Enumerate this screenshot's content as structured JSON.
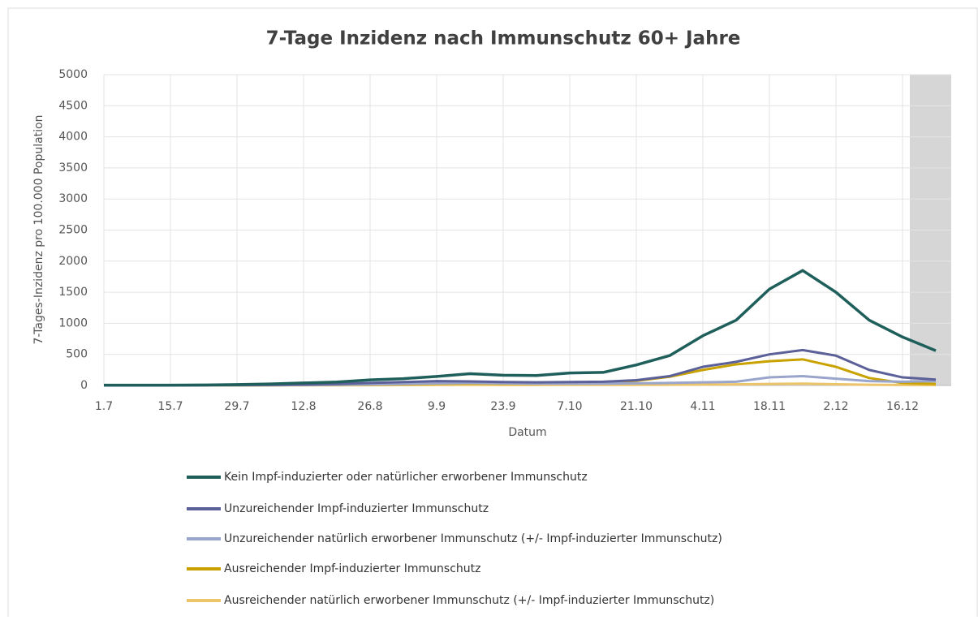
{
  "chart_data": {
    "type": "line",
    "title": "7-Tage Inzidenz nach Immunschutz 60+ Jahre",
    "x_label": "Datum",
    "y_label": "7-Tages-Inzidenz pro 100.000 Population",
    "categories": [
      "1.7",
      null,
      "15.7",
      null,
      "29.7",
      null,
      "12.8",
      null,
      "26.8",
      null,
      "9.9",
      null,
      "23.9",
      null,
      "7.10",
      null,
      "21.10",
      null,
      "4.11",
      null,
      "18.11",
      null,
      "2.12",
      null,
      "16.12",
      null
    ],
    "series": [
      {
        "name": "Kein Impf-induzierter oder natürlicher erworbener Immunschutz",
        "color": "#1f5f5b",
        "values": [
          5,
          5,
          5,
          8,
          15,
          25,
          40,
          55,
          90,
          110,
          145,
          190,
          165,
          160,
          200,
          210,
          330,
          480,
          800,
          1050,
          1550,
          1850,
          1500,
          1050,
          780,
          560
        ]
      },
      {
        "name": "Unzureichender Impf-induzierter Immunschutz",
        "color": "#5c6098",
        "values": [
          2,
          2,
          3,
          4,
          6,
          10,
          15,
          25,
          40,
          55,
          70,
          65,
          55,
          50,
          55,
          60,
          85,
          150,
          300,
          380,
          500,
          570,
          480,
          250,
          130,
          95
        ]
      },
      {
        "name": "Unzureichender natürlich erworbener Immunschutz (+/- Impf-induzierter Immunschutz)",
        "color": "#9aa5cc",
        "values": [
          1,
          1,
          1,
          2,
          3,
          5,
          8,
          12,
          18,
          25,
          35,
          40,
          35,
          30,
          30,
          30,
          35,
          40,
          50,
          60,
          130,
          150,
          110,
          70,
          60,
          70
        ]
      },
      {
        "name": "Ausreichender Impf-induzierter Immunschutz",
        "color": "#c9a200",
        "values": [
          1,
          1,
          1,
          2,
          3,
          5,
          8,
          10,
          15,
          20,
          30,
          35,
          30,
          30,
          40,
          55,
          75,
          140,
          250,
          340,
          390,
          420,
          300,
          120,
          40,
          25
        ]
      },
      {
        "name": "Ausreichender natürlich erworbener Immunschutz (+/- Impf-induzierter Immunschutz)",
        "color": "#ecc46a",
        "values": [
          0,
          0,
          0,
          1,
          1,
          2,
          3,
          4,
          5,
          6,
          8,
          9,
          8,
          8,
          9,
          10,
          10,
          12,
          15,
          18,
          25,
          30,
          20,
          12,
          8,
          6
        ]
      }
    ],
    "ylim": [
      0,
      5000
    ],
    "yticks": [
      0,
      500,
      1000,
      1500,
      2000,
      2500,
      3000,
      3500,
      4000,
      4500,
      5000
    ],
    "grid": true
  }
}
